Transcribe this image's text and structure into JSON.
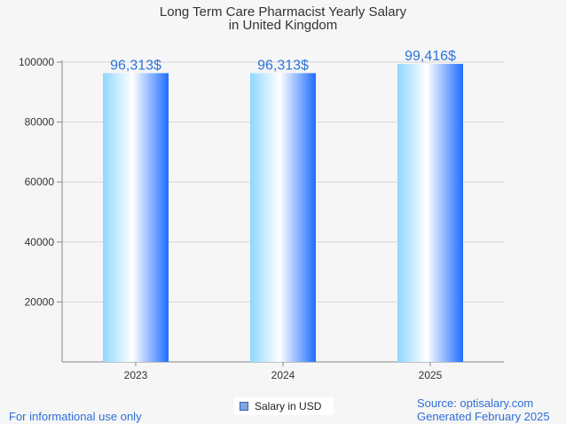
{
  "chart_data": {
    "type": "bar",
    "title_line1": "Long Term Care Pharmacist Yearly Salary",
    "title_line2": "in United Kingdom",
    "categories": [
      "2023",
      "2024",
      "2025"
    ],
    "series": [
      {
        "name": "Salary in USD",
        "values": [
          96313,
          96313,
          99416
        ]
      }
    ],
    "data_labels": [
      "96,313$",
      "96,313$",
      "99,416$"
    ],
    "y_ticks": [
      20000,
      40000,
      60000,
      80000,
      100000
    ],
    "ylim": [
      0,
      100000
    ],
    "grid": true,
    "legend_position": "bottom",
    "bar_gradient": [
      "#8fd7ff",
      "#ffffff",
      "#1f6dff"
    ],
    "label_color": "#2b74dc"
  },
  "footer": {
    "left": "For informational use only",
    "right_line1": "Source: optisalary.com",
    "right_line2": "Generated February 2025"
  }
}
